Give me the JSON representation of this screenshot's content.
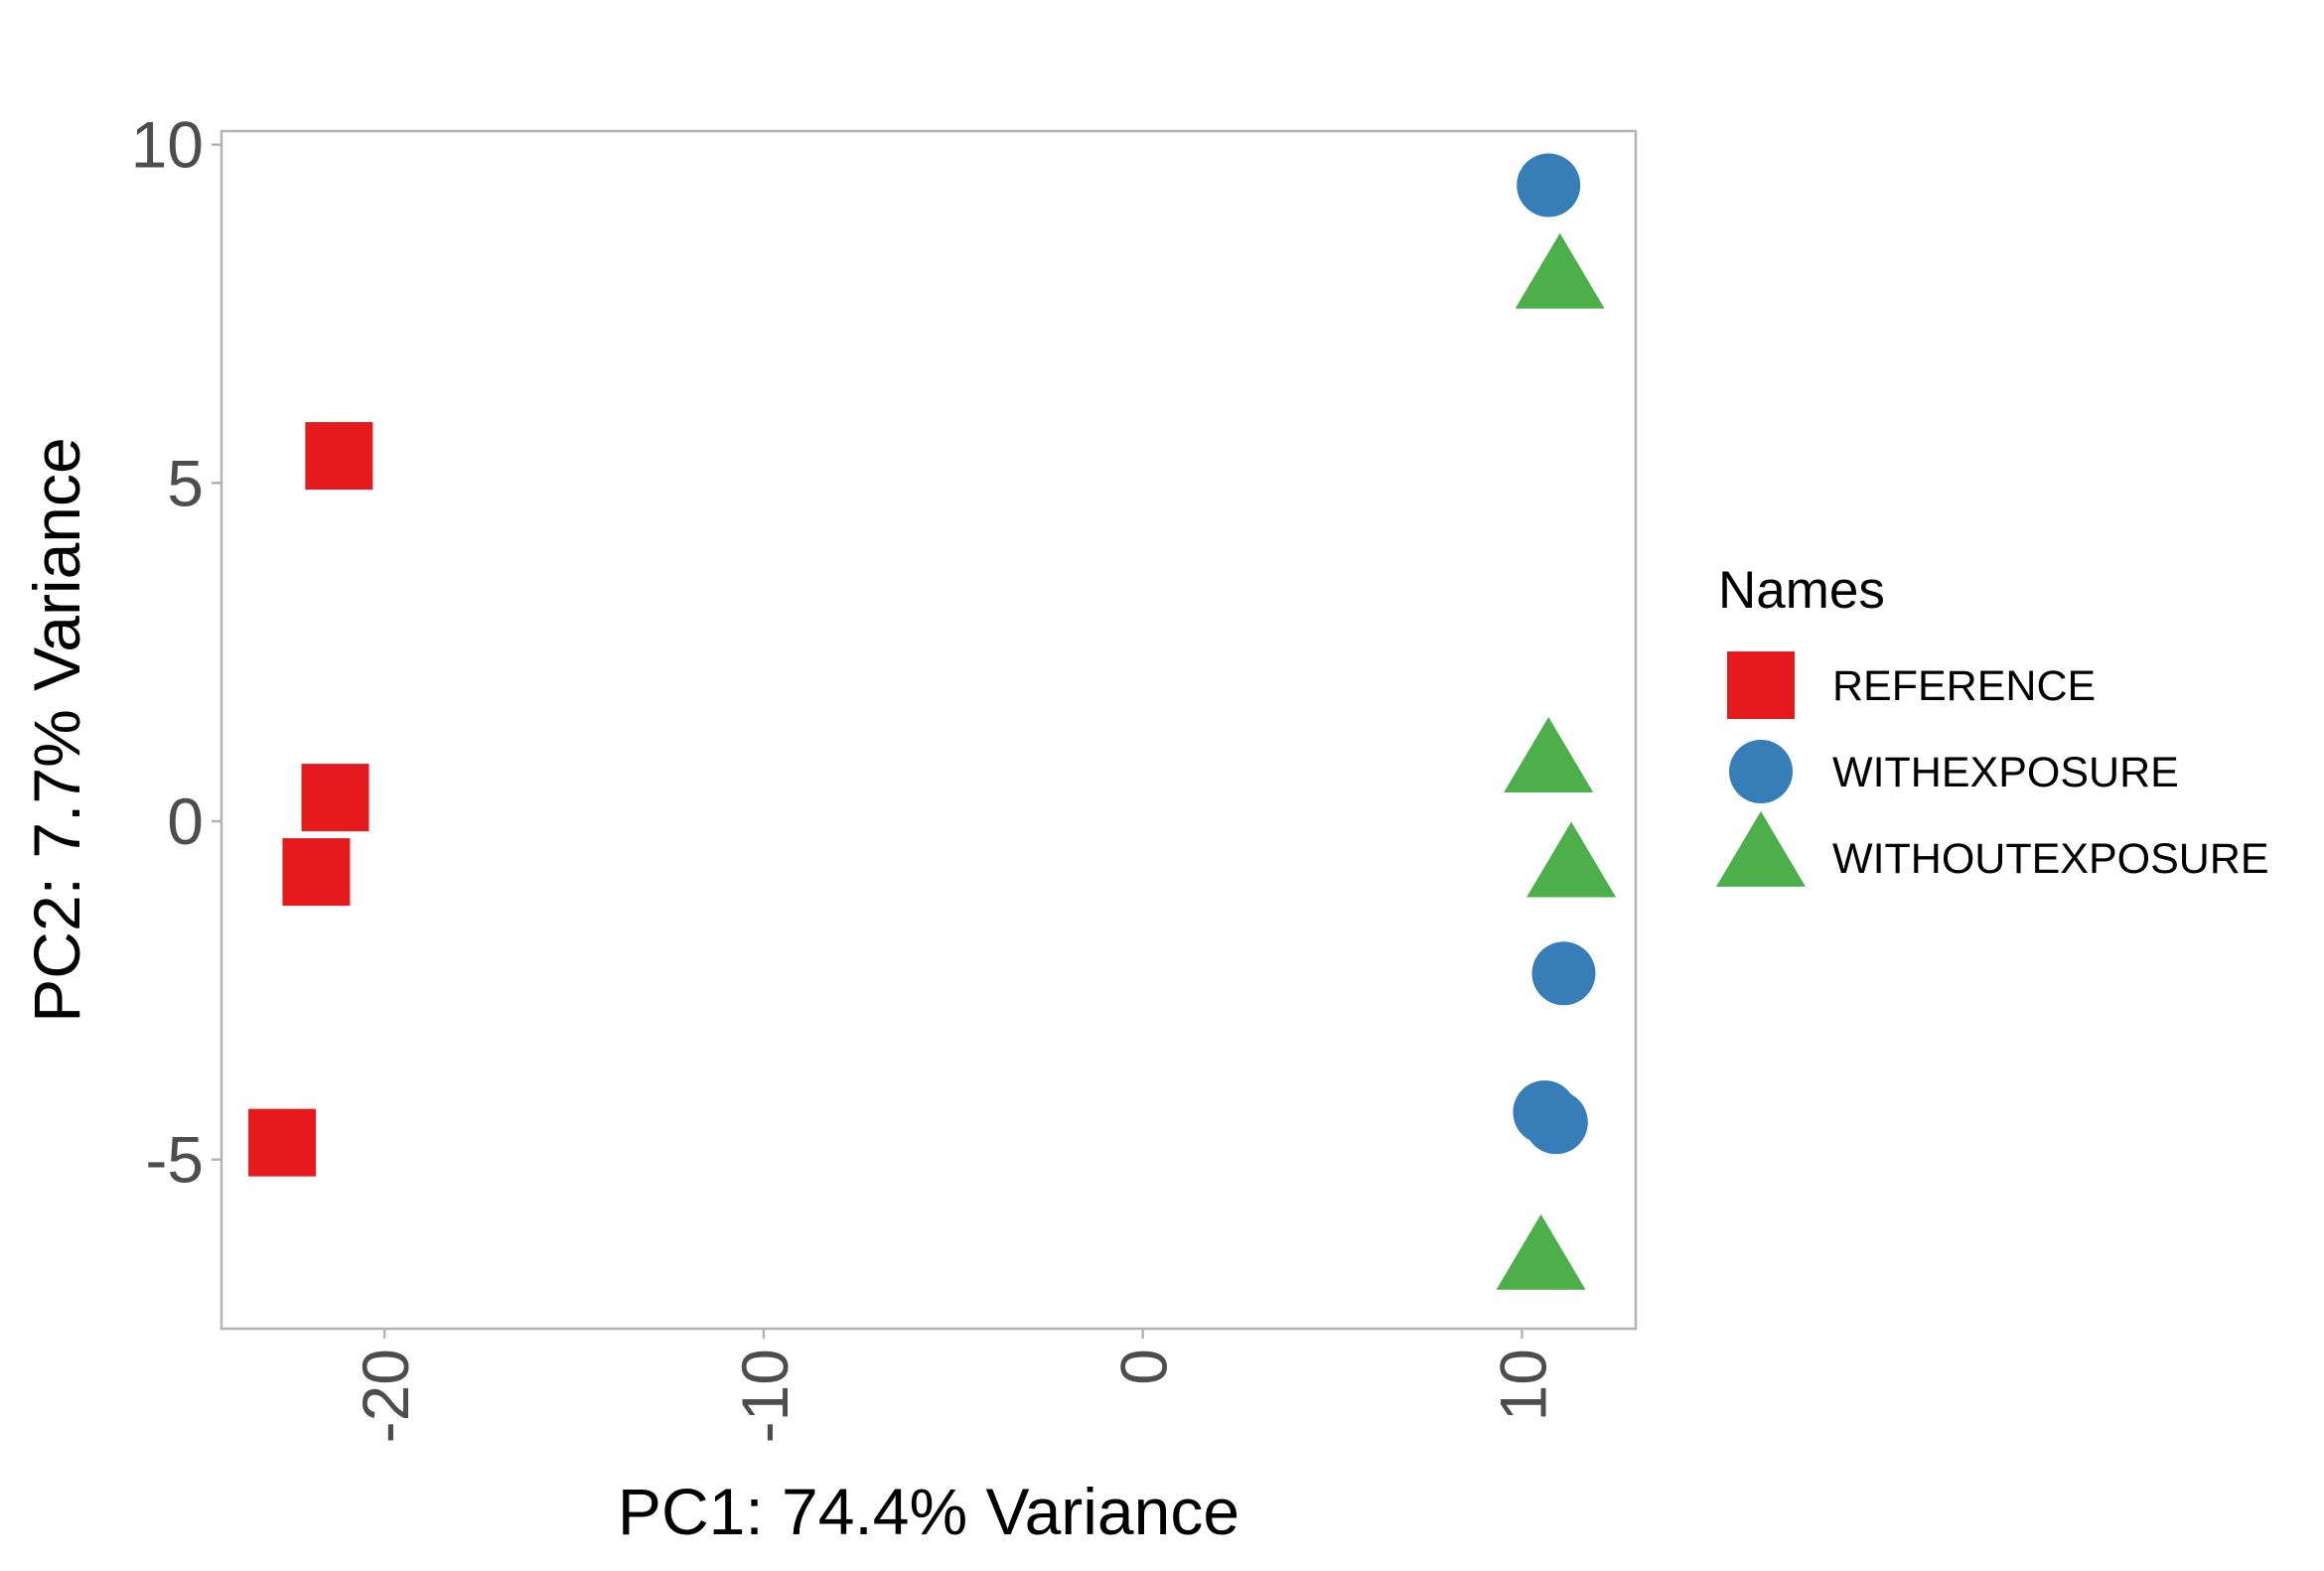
{
  "chart_data": {
    "type": "scatter",
    "title": "",
    "xlabel": "PC1: 74.4% Variance",
    "ylabel": "PC2: 7.7% Variance",
    "xlim": [
      -24.3,
      13
    ],
    "ylim": [
      -7.5,
      10.2
    ],
    "xticks": [
      -20,
      -10,
      0,
      10
    ],
    "yticks": [
      -5,
      0,
      5,
      10
    ],
    "x_tick_labels": [
      "-20",
      "-10",
      "0",
      "10"
    ],
    "y_tick_labels": [
      "-5",
      "0",
      "5",
      "10"
    ],
    "grid": false,
    "legend_position": "right",
    "legend_title": "Names",
    "series": [
      {
        "name": "REFERENCE",
        "shape": "square",
        "color": "#e41a1c",
        "points": [
          {
            "x": -21.2,
            "y": 5.4
          },
          {
            "x": -21.3,
            "y": 0.35
          },
          {
            "x": -21.8,
            "y": -0.75
          },
          {
            "x": -22.7,
            "y": -4.75
          }
        ]
      },
      {
        "name": "WITHEXPOSURE",
        "shape": "circle",
        "color": "#377eb8",
        "points": [
          {
            "x": 10.7,
            "y": 9.4
          },
          {
            "x": 11.1,
            "y": -2.25
          },
          {
            "x": 10.6,
            "y": -4.3
          },
          {
            "x": 10.9,
            "y": -4.45
          }
        ]
      },
      {
        "name": "WITHOUTEXPOSURE",
        "shape": "triangle",
        "color": "#4daf4a",
        "points": [
          {
            "x": 11.0,
            "y": 8.0
          },
          {
            "x": 10.7,
            "y": 0.85
          },
          {
            "x": 11.3,
            "y": -0.7
          },
          {
            "x": 10.5,
            "y": -6.5
          }
        ]
      }
    ]
  }
}
